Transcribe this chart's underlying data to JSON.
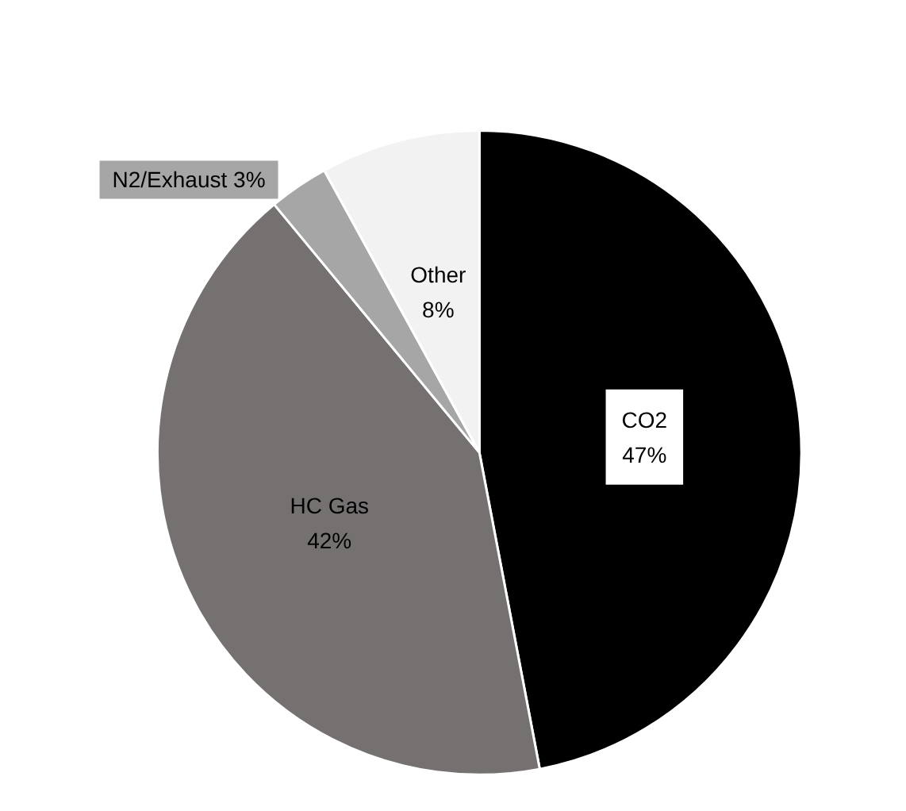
{
  "chart_data": {
    "type": "pie",
    "categories": [
      "CO2",
      "HC Gas",
      "N2/Exhaust",
      "Other"
    ],
    "values": [
      47,
      42,
      3,
      8
    ],
    "colors": [
      "#000000",
      "#767171",
      "#a6a6a6",
      "#f2f2f2"
    ],
    "value_labels": [
      "47%",
      "42%",
      "3%",
      "8%"
    ]
  }
}
